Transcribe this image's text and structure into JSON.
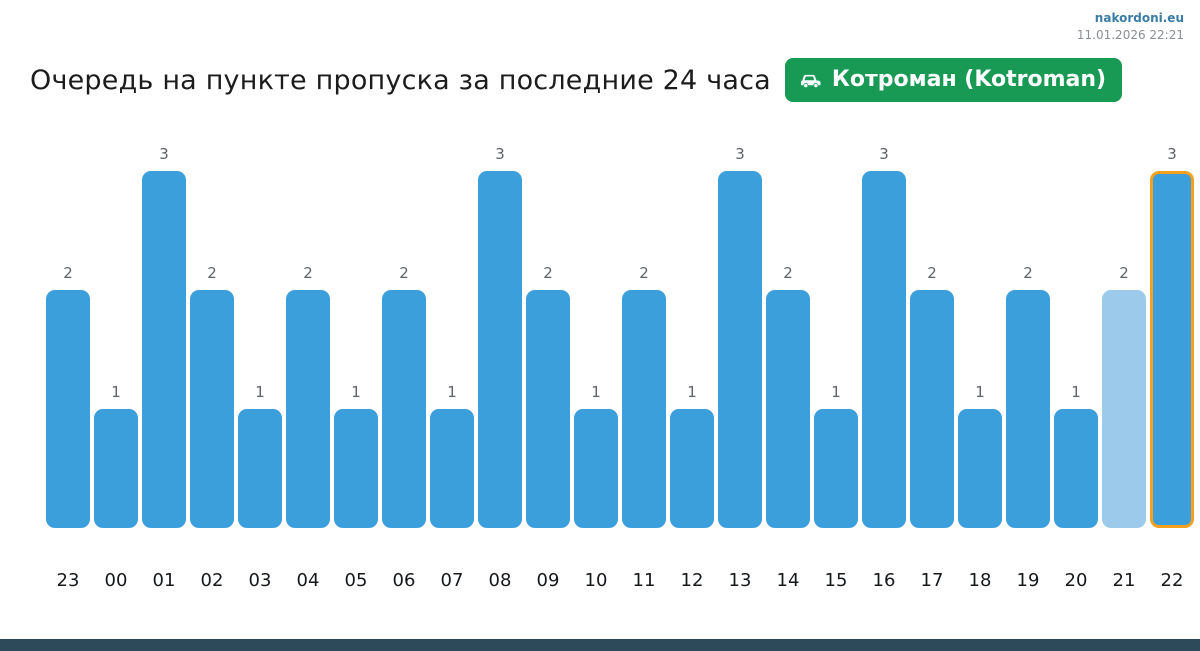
{
  "site": {
    "domain": "nakordoni.eu",
    "datetime": "11.01.2026 22:21"
  },
  "header": {
    "title": "Очередь на пункте пропуска за последние 24 часа",
    "badge": {
      "label": "Котроман (Kotroman)",
      "color": "#189a55",
      "icon": "car-icon"
    }
  },
  "chart_data": {
    "type": "bar",
    "title": "Очередь на пункте пропуска за последние 24 часа",
    "categories": [
      "23",
      "00",
      "01",
      "02",
      "03",
      "04",
      "05",
      "06",
      "07",
      "08",
      "09",
      "10",
      "11",
      "12",
      "13",
      "14",
      "15",
      "16",
      "17",
      "18",
      "19",
      "20",
      "21",
      "22"
    ],
    "values": [
      2,
      1,
      3,
      2,
      1,
      2,
      1,
      2,
      1,
      3,
      2,
      1,
      2,
      1,
      3,
      2,
      1,
      3,
      2,
      1,
      2,
      1,
      2,
      3
    ],
    "ylim": [
      0,
      3
    ],
    "value_labels": true,
    "grid": false,
    "legend": false,
    "bar_color": "#3b9fdb",
    "muted_bar_color": "#9ccaeb",
    "muted_bars": [
      "21"
    ],
    "highlighted_bar": "22",
    "highlight_border_color": "#f5a01f"
  },
  "footer": {
    "bar_color": "#2c4a5a"
  }
}
